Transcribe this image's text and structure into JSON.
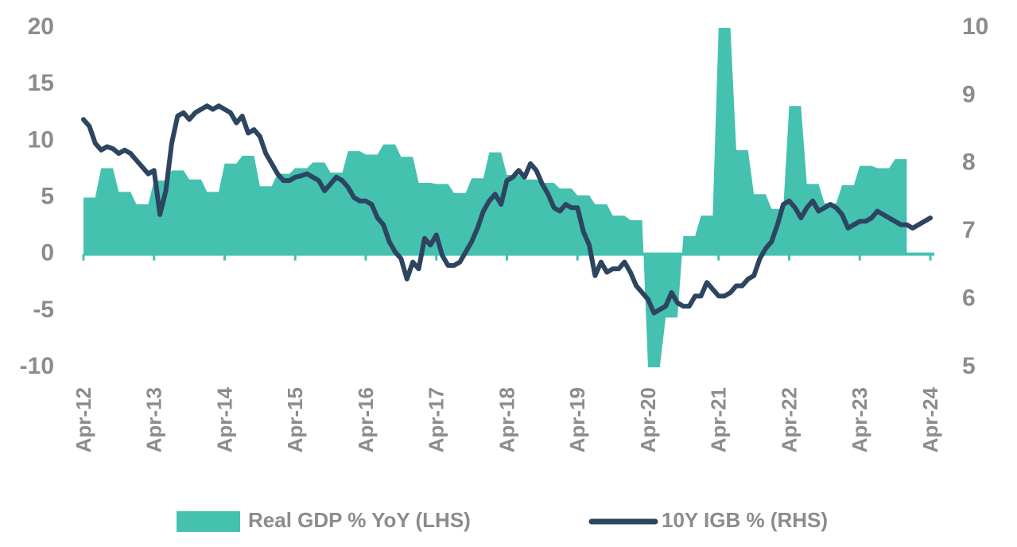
{
  "chart_data": {
    "type": "area-line",
    "categories": [
      "Apr-12",
      null,
      null,
      null,
      null,
      null,
      null,
      null,
      null,
      null,
      null,
      null,
      "Apr-13",
      null,
      null,
      null,
      null,
      null,
      null,
      null,
      null,
      null,
      null,
      null,
      "Apr-14",
      null,
      null,
      null,
      null,
      null,
      null,
      null,
      null,
      null,
      null,
      null,
      "Apr-15",
      null,
      null,
      null,
      null,
      null,
      null,
      null,
      null,
      null,
      null,
      null,
      "Apr-16",
      null,
      null,
      null,
      null,
      null,
      null,
      null,
      null,
      null,
      null,
      null,
      "Apr-17",
      null,
      null,
      null,
      null,
      null,
      null,
      null,
      null,
      null,
      null,
      null,
      "Apr-18",
      null,
      null,
      null,
      null,
      null,
      null,
      null,
      null,
      null,
      null,
      null,
      "Apr-19",
      null,
      null,
      null,
      null,
      null,
      null,
      null,
      null,
      null,
      null,
      null,
      "Apr-20",
      null,
      null,
      null,
      null,
      null,
      null,
      null,
      null,
      null,
      null,
      null,
      "Apr-21",
      null,
      null,
      null,
      null,
      null,
      null,
      null,
      null,
      null,
      null,
      null,
      "Apr-22",
      null,
      null,
      null,
      null,
      null,
      null,
      null,
      null,
      null,
      null,
      null,
      "Apr-23",
      null,
      null,
      null,
      null,
      null,
      null,
      null,
      null,
      null,
      null,
      null,
      "Apr-24"
    ],
    "series": [
      {
        "name": "Real GDP % YoY (LHS)",
        "color": "#45c1b0",
        "kind": "area",
        "axis": "y",
        "values": [
          5.0,
          5.0,
          5.0,
          7.6,
          7.6,
          7.6,
          5.5,
          5.5,
          5.5,
          4.4,
          4.4,
          4.4,
          6.5,
          6.5,
          6.5,
          7.4,
          7.4,
          7.4,
          6.6,
          6.6,
          6.6,
          5.5,
          5.5,
          5.5,
          8.0,
          8.0,
          8.0,
          8.7,
          8.7,
          8.7,
          6.0,
          6.0,
          6.0,
          7.1,
          7.1,
          7.1,
          7.6,
          7.6,
          7.6,
          8.1,
          8.1,
          8.1,
          7.2,
          7.2,
          7.2,
          9.1,
          9.1,
          9.1,
          8.8,
          8.8,
          8.8,
          9.7,
          9.7,
          9.7,
          8.6,
          8.6,
          8.6,
          6.3,
          6.3,
          6.3,
          6.2,
          6.2,
          6.2,
          5.4,
          5.4,
          5.4,
          6.7,
          6.7,
          6.7,
          9.0,
          9.0,
          9.0,
          7.0,
          7.0,
          7.0,
          6.6,
          6.6,
          6.6,
          6.3,
          6.3,
          6.3,
          5.8,
          5.8,
          5.8,
          5.2,
          5.2,
          5.2,
          4.4,
          4.4,
          4.4,
          3.4,
          3.4,
          3.4,
          3.0,
          3.0,
          3.0,
          -10,
          -10,
          -10,
          -5.6,
          -5.6,
          -5.6,
          1.6,
          1.6,
          1.6,
          3.4,
          3.4,
          3.4,
          20,
          20,
          20,
          9.2,
          9.2,
          9.2,
          5.3,
          5.3,
          5.3,
          4.0,
          4.0,
          4.0,
          13.1,
          13.1,
          13.1,
          6.2,
          6.2,
          6.2,
          4.5,
          4.5,
          4.5,
          6.1,
          6.1,
          6.1,
          7.8,
          7.8,
          7.8,
          7.6,
          7.6,
          7.6,
          8.4,
          8.4,
          8.4,
          null,
          null,
          null,
          null
        ]
      },
      {
        "name": "10Y IGB % (RHS)",
        "color": "#2d4560",
        "kind": "line",
        "axis": "y2",
        "values": [
          8.65,
          8.55,
          8.3,
          8.2,
          8.25,
          8.22,
          8.15,
          8.2,
          8.15,
          8.05,
          7.95,
          7.85,
          7.9,
          7.25,
          7.6,
          8.3,
          8.7,
          8.75,
          8.65,
          8.75,
          8.8,
          8.85,
          8.8,
          8.85,
          8.8,
          8.75,
          8.6,
          8.7,
          8.45,
          8.5,
          8.4,
          8.15,
          8.0,
          7.85,
          7.75,
          7.75,
          7.8,
          7.82,
          7.85,
          7.8,
          7.75,
          7.6,
          7.7,
          7.8,
          7.75,
          7.65,
          7.5,
          7.45,
          7.45,
          7.4,
          7.2,
          7.1,
          6.85,
          6.7,
          6.6,
          6.3,
          6.55,
          6.45,
          6.9,
          6.8,
          6.95,
          6.65,
          6.5,
          6.5,
          6.55,
          6.7,
          6.85,
          7.05,
          7.3,
          7.45,
          7.55,
          7.4,
          7.75,
          7.8,
          7.9,
          7.8,
          8.0,
          7.9,
          7.7,
          7.55,
          7.35,
          7.3,
          7.4,
          7.35,
          7.35,
          7.0,
          6.8,
          6.35,
          6.55,
          6.4,
          6.45,
          6.45,
          6.55,
          6.4,
          6.2,
          6.1,
          6.0,
          5.8,
          5.85,
          5.9,
          6.1,
          5.95,
          5.9,
          5.9,
          6.05,
          6.05,
          6.25,
          6.15,
          6.05,
          6.05,
          6.1,
          6.2,
          6.2,
          6.3,
          6.35,
          6.6,
          6.75,
          6.85,
          7.1,
          7.4,
          7.45,
          7.35,
          7.2,
          7.35,
          7.45,
          7.3,
          7.35,
          7.4,
          7.35,
          7.25,
          7.05,
          7.1,
          7.15,
          7.15,
          7.2,
          7.3,
          7.25,
          7.2,
          7.15,
          7.1,
          7.1,
          7.05,
          7.1,
          7.15,
          7.2
        ]
      }
    ],
    "ylim": [
      -10,
      20
    ],
    "yticks": [
      -10,
      -5,
      0,
      5,
      10,
      15,
      20
    ],
    "y2lim": [
      5,
      10
    ],
    "y2ticks": [
      5,
      6,
      7,
      8,
      9,
      10
    ],
    "legend": "bottom"
  }
}
